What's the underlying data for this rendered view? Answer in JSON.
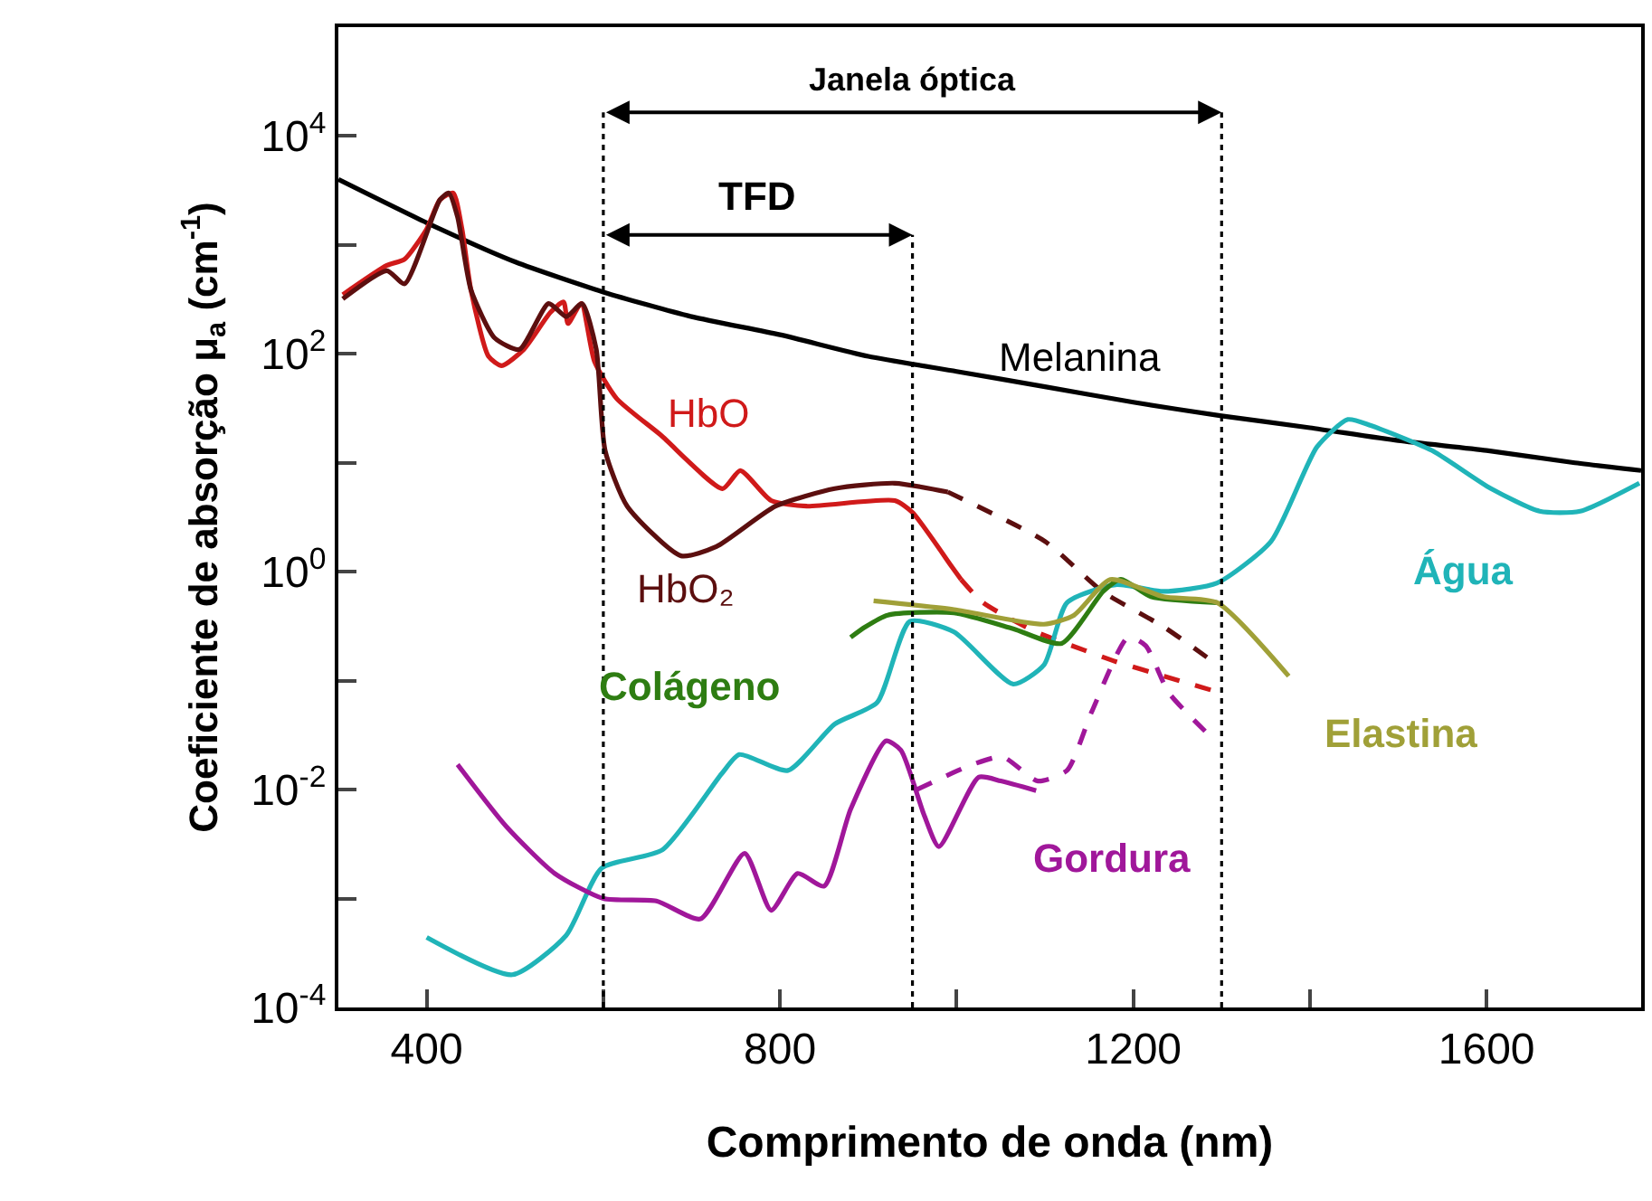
{
  "chart_data": {
    "type": "line",
    "xlabel": "Comprimento de onda (nm)",
    "ylabel": "Coeficiente de absorção μ$_{a}$ (cm$^{-1}$)",
    "log": "y",
    "grid": false,
    "legend": false,
    "marker": "none",
    "line_style": "solid",
    "xlim": [
      300,
      1775
    ],
    "xticks": [
      400,
      {
        "value": 600,
        "label": null
      },
      800,
      {
        "value": 1000,
        "label": null
      },
      1200,
      {
        "value": 1400,
        "label": null
      },
      1600
    ],
    "ylim": [
      0.0001,
      100000
    ],
    "yticks": [
      {
        "value": 0.0001,
        "label": "10$^{-4}$"
      },
      {
        "value": 0.001,
        "label": null
      },
      {
        "value": 0.01,
        "label": "10$^{-2}$"
      },
      {
        "value": 0.1,
        "label": null
      },
      {
        "value": 1,
        "label": "10$^{0}$"
      },
      {
        "value": 10,
        "label": null
      },
      {
        "value": 100,
        "label": "10$^{2}$"
      },
      {
        "value": 1000,
        "label": null
      },
      {
        "value": 10000,
        "label": "10$^{4}$"
      }
    ],
    "ref_lines": [
      {
        "axis": "x",
        "value": 600,
        "label": null,
        "line_style": "dotted",
        "color": "#000000"
      },
      {
        "axis": "x",
        "value": 950,
        "label": null,
        "line_style": "dotted",
        "color": "#000000"
      },
      {
        "axis": "x",
        "value": 1300,
        "label": null,
        "line_style": "dotted",
        "color": "#000000"
      }
    ],
    "annotations": [
      "Janela óptica",
      "TFD"
    ],
    "series": [
      {
        "name": "Melanina",
        "color": "#000000",
        "x": [
          300,
          400,
          500,
          600,
          700,
          800,
          900,
          1000,
          1100,
          1200,
          1300,
          1400,
          1500,
          1600,
          1700,
          1775
        ],
        "values": [
          4000,
          1600,
          700,
          370,
          220,
          150,
          95,
          69,
          50,
          36,
          27,
          21,
          16,
          13,
          10,
          8.5
        ]
      },
      {
        "name": "HbO",
        "color": "#d01a1a",
        "x": [
          305,
          355,
          375,
          400,
          415,
          430,
          440,
          450,
          470,
          485,
          510,
          540,
          555,
          560,
          575,
          590,
          615,
          665,
          735,
          755,
          790,
          830,
          930,
          950,
          995,
          1005
        ],
        "values": [
          350,
          650,
          740,
          1400,
          2600,
          3000,
          1400,
          390,
          95,
          78,
          110,
          240,
          300,
          190,
          290,
          85,
          39,
          18,
          5.8,
          8.5,
          4.5,
          4.0,
          4.5,
          3.5,
          1.1,
          0.85
        ]
      },
      {
        "color": "#d01a1a",
        "line_style": "dashed",
        "x": [
          1005,
          1030,
          1090,
          1145,
          1180,
          1235,
          1295
        ],
        "values": [
          0.85,
          0.52,
          0.28,
          0.19,
          0.15,
          0.11,
          0.079
        ]
      },
      {
        "name": "HbO₂",
        "color": "#5c0f0f",
        "x": [
          305,
          355,
          375,
          415,
          425,
          435,
          450,
          477,
          505,
          538,
          558,
          576,
          592,
          602,
          627,
          688,
          728,
          795,
          862,
          930,
          990
        ],
        "values": [
          320,
          580,
          440,
          2600,
          3000,
          1800,
          390,
          140,
          110,
          290,
          220,
          290,
          110,
          13,
          4.0,
          1.4,
          1.7,
          4.0,
          5.8,
          6.5,
          5.4
        ]
      },
      {
        "color": "#5c0f0f",
        "line_style": "dashed",
        "x": [
          990,
          1100,
          1165,
          1235,
          1290
        ],
        "values": [
          5.4,
          1.9,
          0.66,
          0.31,
          0.15
        ]
      },
      {
        "name": "Água",
        "color": "#20b4b8",
        "x": [
          400,
          497,
          558,
          598,
          667,
          734,
          754,
          809,
          862,
          910,
          947,
          997,
          1064,
          1099,
          1125,
          1180,
          1234,
          1295,
          1356,
          1408,
          1443,
          1469,
          1538,
          1605,
          1660,
          1706,
          1773
        ],
        "values": [
          0.00044,
          0.0002,
          0.00046,
          0.0019,
          0.0028,
          0.014,
          0.021,
          0.015,
          0.04,
          0.063,
          0.35,
          0.28,
          0.093,
          0.14,
          0.52,
          0.76,
          0.66,
          0.79,
          1.9,
          14,
          25,
          22,
          13,
          5.8,
          3.6,
          3.6,
          6.5
        ]
      },
      {
        "name": "Gordura",
        "color": "#a0179a",
        "x": [
          435,
          490,
          545,
          600,
          660,
          710,
          760,
          790,
          820,
          850,
          880,
          920,
          937,
          963,
          980,
          1025,
          1050,
          1090
        ],
        "values": [
          0.017,
          0.0046,
          0.0017,
          0.001,
          0.00095,
          0.00065,
          0.0026,
          0.00078,
          0.0017,
          0.0013,
          0.0066,
          0.028,
          0.023,
          0.0059,
          0.003,
          0.013,
          0.012,
          0.0098
        ]
      },
      {
        "color": "#a0179a",
        "line_style": "dashed",
        "x": [
          955,
          1018,
          1052,
          1092,
          1125,
          1153,
          1194,
          1214,
          1240,
          1287
        ],
        "values": [
          0.01,
          0.017,
          0.02,
          0.012,
          0.015,
          0.052,
          0.25,
          0.21,
          0.078,
          0.031
        ]
      },
      {
        "name": "Colágeno",
        "color": "#2e7d12",
        "x": [
          880,
          896,
          922,
          997,
          1064,
          1119,
          1166,
          1186,
          1220,
          1295
        ],
        "values": [
          0.25,
          0.31,
          0.4,
          0.42,
          0.3,
          0.22,
          0.66,
          0.85,
          0.59,
          0.52
        ]
      },
      {
        "name": "Elastina",
        "color": "#a0a038",
        "x": [
          906,
          997,
          1099,
          1133,
          1174,
          1234,
          1295,
          1376
        ],
        "values": [
          0.54,
          0.45,
          0.33,
          0.4,
          0.85,
          0.59,
          0.52,
          0.11
        ]
      }
    ]
  }
}
